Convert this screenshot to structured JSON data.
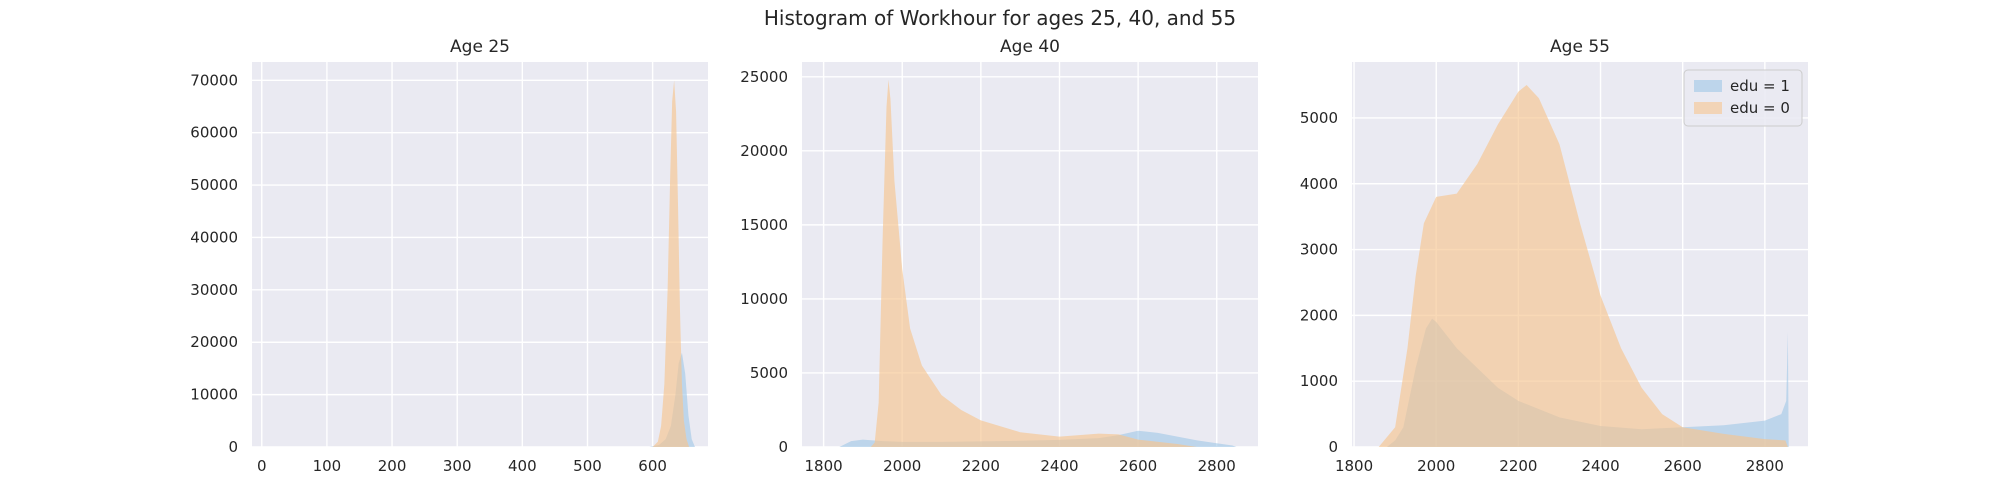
{
  "figure": {
    "title": "Histogram of Workhour for ages 25, 40, and 55",
    "colors": {
      "background": "#ffffff",
      "panel_bg": "#eaeaf2",
      "grid": "#ffffff",
      "edu1": "#9ec6e6",
      "edu0": "#f6c48f"
    }
  },
  "chart_data": [
    {
      "type": "histogram",
      "title": "Age 25",
      "xlim": [
        -15,
        685
      ],
      "ylim": [
        0,
        73500
      ],
      "xticks": [
        0,
        100,
        200,
        300,
        400,
        500,
        600
      ],
      "yticks": [
        0,
        10000,
        20000,
        30000,
        40000,
        50000,
        60000,
        70000
      ],
      "series": [
        {
          "name": "edu = 1",
          "color": "#9ec6e6",
          "points": [
            [
              595,
              0
            ],
            [
              610,
              400
            ],
            [
              620,
              1500
            ],
            [
              628,
              4000
            ],
            [
              635,
              10000
            ],
            [
              640,
              16000
            ],
            [
              645,
              18000
            ],
            [
              650,
              14000
            ],
            [
              655,
              6000
            ],
            [
              660,
              1500
            ],
            [
              665,
              0
            ]
          ]
        },
        {
          "name": "edu = 0",
          "color": "#f6c48f",
          "points": [
            [
              600,
              0
            ],
            [
              608,
              1000
            ],
            [
              613,
              4000
            ],
            [
              618,
              12000
            ],
            [
              623,
              30000
            ],
            [
              627,
              52000
            ],
            [
              630,
              66000
            ],
            [
              633,
              70000
            ],
            [
              636,
              64000
            ],
            [
              639,
              46000
            ],
            [
              642,
              26000
            ],
            [
              645,
              12000
            ],
            [
              648,
              5000
            ],
            [
              652,
              1500
            ],
            [
              656,
              0
            ]
          ]
        }
      ]
    },
    {
      "type": "histogram",
      "title": "Age 40",
      "xlim": [
        1745,
        2905
      ],
      "ylim": [
        0,
        26000
      ],
      "xticks": [
        1800,
        2000,
        2200,
        2400,
        2600,
        2800
      ],
      "yticks": [
        0,
        5000,
        10000,
        15000,
        20000,
        25000
      ],
      "series": [
        {
          "name": "edu = 1",
          "color": "#9ec6e6",
          "points": [
            [
              1840,
              0
            ],
            [
              1870,
              400
            ],
            [
              1900,
              500
            ],
            [
              1950,
              400
            ],
            [
              2000,
              350
            ],
            [
              2100,
              350
            ],
            [
              2200,
              380
            ],
            [
              2300,
              420
            ],
            [
              2400,
              480
            ],
            [
              2500,
              600
            ],
            [
              2550,
              800
            ],
            [
              2600,
              1100
            ],
            [
              2650,
              950
            ],
            [
              2700,
              700
            ],
            [
              2750,
              450
            ],
            [
              2800,
              250
            ],
            [
              2840,
              100
            ],
            [
              2850,
              0
            ]
          ]
        },
        {
          "name": "edu = 0",
          "color": "#f6c48f",
          "points": [
            [
              1920,
              0
            ],
            [
              1930,
              300
            ],
            [
              1940,
              3000
            ],
            [
              1950,
              14000
            ],
            [
              1960,
              23000
            ],
            [
              1965,
              24800
            ],
            [
              1970,
              23500
            ],
            [
              1980,
              18000
            ],
            [
              2000,
              12000
            ],
            [
              2020,
              8000
            ],
            [
              2050,
              5500
            ],
            [
              2100,
              3500
            ],
            [
              2150,
              2500
            ],
            [
              2200,
              1800
            ],
            [
              2300,
              1000
            ],
            [
              2400,
              700
            ],
            [
              2500,
              900
            ],
            [
              2550,
              850
            ],
            [
              2600,
              500
            ],
            [
              2700,
              200
            ],
            [
              2750,
              0
            ]
          ]
        }
      ]
    },
    {
      "type": "histogram",
      "title": "Age 55",
      "xlim": [
        1795,
        2905
      ],
      "ylim": [
        0,
        5850
      ],
      "xticks": [
        1800,
        2000,
        2200,
        2400,
        2600,
        2800
      ],
      "yticks": [
        0,
        1000,
        2000,
        3000,
        4000,
        5000
      ],
      "legend": {
        "position": "upper right"
      },
      "series": [
        {
          "name": "edu = 1",
          "color": "#9ec6e6",
          "points": [
            [
              1880,
              0
            ],
            [
              1900,
              100
            ],
            [
              1920,
              300
            ],
            [
              1950,
              1200
            ],
            [
              1975,
              1800
            ],
            [
              1990,
              1950
            ],
            [
              2000,
              1900
            ],
            [
              2050,
              1500
            ],
            [
              2100,
              1200
            ],
            [
              2150,
              900
            ],
            [
              2200,
              700
            ],
            [
              2300,
              450
            ],
            [
              2400,
              320
            ],
            [
              2500,
              270
            ],
            [
              2600,
              300
            ],
            [
              2700,
              330
            ],
            [
              2800,
              400
            ],
            [
              2840,
              500
            ],
            [
              2852,
              700
            ],
            [
              2856,
              1750
            ],
            [
              2858,
              0
            ]
          ]
        },
        {
          "name": "edu = 0",
          "color": "#f6c48f",
          "points": [
            [
              1860,
              0
            ],
            [
              1900,
              300
            ],
            [
              1930,
              1500
            ],
            [
              1950,
              2600
            ],
            [
              1970,
              3400
            ],
            [
              2000,
              3800
            ],
            [
              2050,
              3850
            ],
            [
              2100,
              4300
            ],
            [
              2150,
              4900
            ],
            [
              2200,
              5400
            ],
            [
              2220,
              5500
            ],
            [
              2250,
              5300
            ],
            [
              2300,
              4600
            ],
            [
              2350,
              3400
            ],
            [
              2400,
              2300
            ],
            [
              2450,
              1500
            ],
            [
              2500,
              900
            ],
            [
              2550,
              500
            ],
            [
              2600,
              300
            ],
            [
              2700,
              200
            ],
            [
              2800,
              120
            ],
            [
              2850,
              100
            ],
            [
              2856,
              0
            ]
          ]
        }
      ]
    }
  ]
}
